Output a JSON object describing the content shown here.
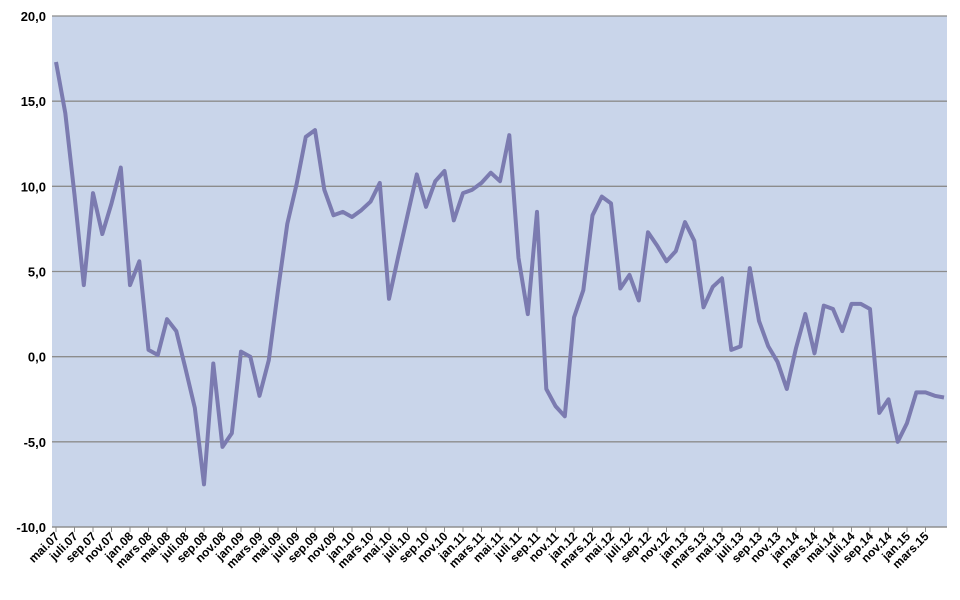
{
  "chart_data": {
    "type": "line",
    "categories": [
      "mai.07",
      null,
      "juli.07",
      null,
      "sep.07",
      null,
      "nov.07",
      null,
      "jan.08",
      null,
      "mars.08",
      null,
      "mai.08",
      null,
      "juli.08",
      null,
      "sep.08",
      null,
      "nov.08",
      null,
      "jan.09",
      null,
      "mars.09",
      null,
      "mai.09",
      null,
      "juli.09",
      null,
      "sep.09",
      null,
      "nov.09",
      null,
      "jan.10",
      null,
      "mars.10",
      null,
      "mai.10",
      null,
      "juli.10",
      null,
      "sep.10",
      null,
      "nov.10",
      null,
      "jan.11",
      null,
      "mars.11",
      null,
      "mai.11",
      null,
      "juli.11",
      null,
      "sep.11",
      null,
      "nov.11",
      null,
      "jan.12",
      null,
      "mars.12",
      null,
      "mai.12",
      null,
      "juli.12",
      null,
      "sep.12",
      null,
      "nov.12",
      null,
      "jan.13",
      null,
      "mars.13",
      null,
      "mai.13",
      null,
      "juli.13",
      null,
      "sep.13",
      null,
      "nov.13",
      null,
      "jan.14",
      null,
      "mars.14",
      null,
      "mai.14",
      null,
      "juli.14",
      null,
      "sep.14",
      null,
      "nov.14",
      null,
      "jan.15",
      null,
      "mars.15",
      null,
      null
    ],
    "values": [
      17.3,
      14.3,
      9.5,
      4.2,
      9.6,
      7.2,
      9.0,
      11.1,
      4.2,
      5.6,
      0.4,
      0.1,
      2.2,
      1.5,
      -0.7,
      -3.0,
      -7.5,
      -0.4,
      -5.3,
      -4.5,
      0.3,
      0.0,
      -2.3,
      -0.2,
      3.9,
      7.8,
      10.1,
      12.9,
      13.3,
      9.8,
      8.3,
      8.5,
      8.2,
      8.6,
      9.1,
      10.2,
      3.4,
      5.9,
      8.3,
      10.7,
      8.8,
      10.3,
      10.9,
      8.0,
      9.6,
      9.8,
      10.2,
      10.8,
      10.3,
      13.0,
      5.8,
      2.5,
      8.5,
      -1.9,
      -2.9,
      -3.5,
      2.3,
      3.9,
      8.3,
      9.4,
      9.0,
      4.0,
      4.8,
      3.3,
      7.3,
      6.5,
      5.6,
      6.2,
      7.9,
      6.8,
      2.9,
      4.1,
      4.6,
      0.4,
      0.6,
      5.2,
      2.1,
      0.6,
      -0.3,
      -1.9,
      0.5,
      2.5,
      0.2,
      3.0,
      2.8,
      1.5,
      3.1,
      3.1,
      2.8,
      -3.3,
      -2.5,
      -5.0,
      -3.9,
      -2.1,
      -2.1,
      -2.3,
      -2.4
    ],
    "color": "#7b7bb0",
    "ylim": [
      -10,
      20
    ],
    "yticks": [
      {
        "value": -10,
        "label": "-10,0"
      },
      {
        "value": -5,
        "label": "-5,0"
      },
      {
        "value": 0,
        "label": "0,0"
      },
      {
        "value": 5,
        "label": "5,0"
      },
      {
        "value": 10,
        "label": "10,0"
      },
      {
        "value": 15,
        "label": "15,0"
      },
      {
        "value": 20,
        "label": "20,0"
      }
    ],
    "grid": true
  }
}
